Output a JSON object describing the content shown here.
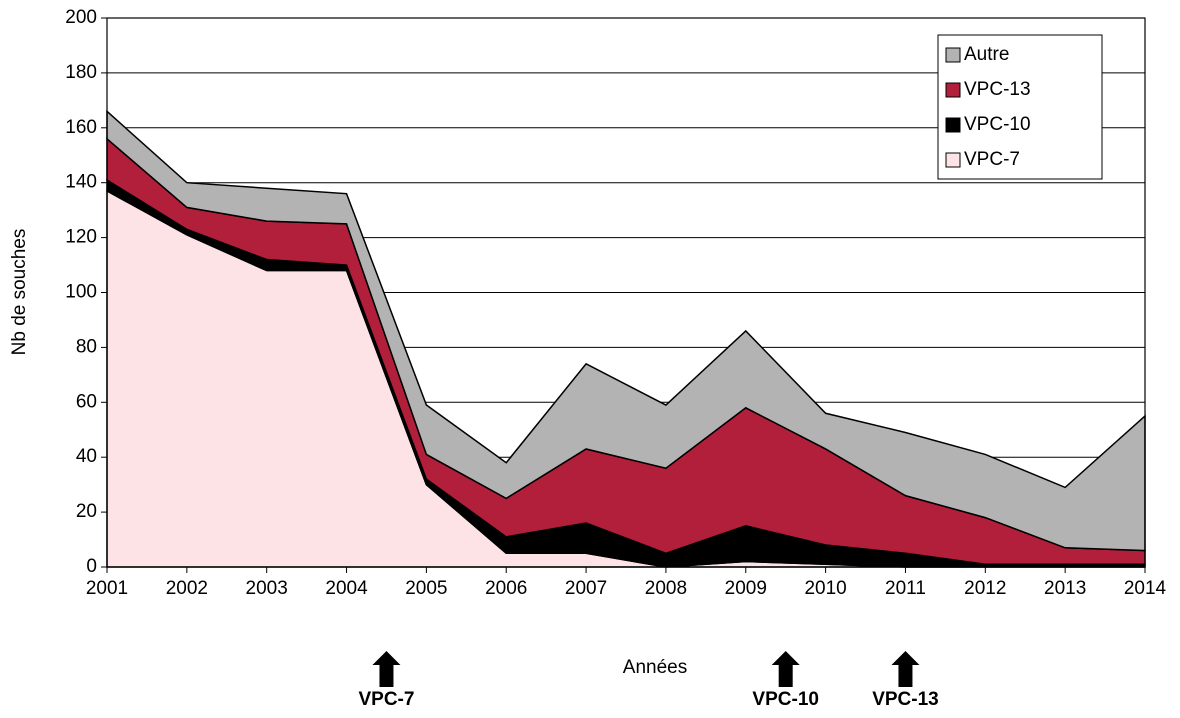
{
  "chart_data": {
    "type": "stacked-area",
    "x_label": "Années",
    "y_label": "Nb de souches",
    "x": [
      2001,
      2002,
      2003,
      2004,
      2005,
      2006,
      2007,
      2008,
      2009,
      2010,
      2011,
      2012,
      2013,
      2014
    ],
    "xlim": [
      2001,
      2014
    ],
    "xticks": [
      2001,
      2002,
      2003,
      2004,
      2005,
      2006,
      2007,
      2008,
      2009,
      2010,
      2011,
      2012,
      2013,
      2014
    ],
    "ylim": [
      0,
      200
    ],
    "yticks": [
      0,
      20,
      40,
      60,
      80,
      100,
      120,
      140,
      160,
      180,
      200
    ],
    "grid": true,
    "legend": "upper right",
    "series": [
      {
        "name": "VPC-7",
        "color": "#fde3e6",
        "values": [
          137,
          121,
          108,
          108,
          30,
          5,
          5,
          0,
          2,
          1,
          0,
          0,
          0,
          0
        ]
      },
      {
        "name": "VPC-10",
        "color": "#000000",
        "values": [
          4,
          2,
          4,
          2,
          2,
          6,
          11,
          5,
          13,
          7,
          5,
          1,
          1,
          1
        ]
      },
      {
        "name": "VPC-13",
        "color": "#b11f3a",
        "values": [
          15,
          8,
          14,
          15,
          9,
          14,
          27,
          31,
          43,
          35,
          21,
          17,
          6,
          5
        ]
      },
      {
        "name": "Autre",
        "color": "#b3b3b3",
        "values": [
          10,
          9,
          12,
          11,
          18,
          13,
          31,
          23,
          28,
          13,
          23,
          23,
          22,
          49
        ]
      }
    ],
    "annotations": [
      {
        "text": "VPC-7",
        "x": 2004.5
      },
      {
        "text": "VPC-10",
        "x": 2009.5
      },
      {
        "text": "VPC-13",
        "x": 2011
      }
    ]
  }
}
